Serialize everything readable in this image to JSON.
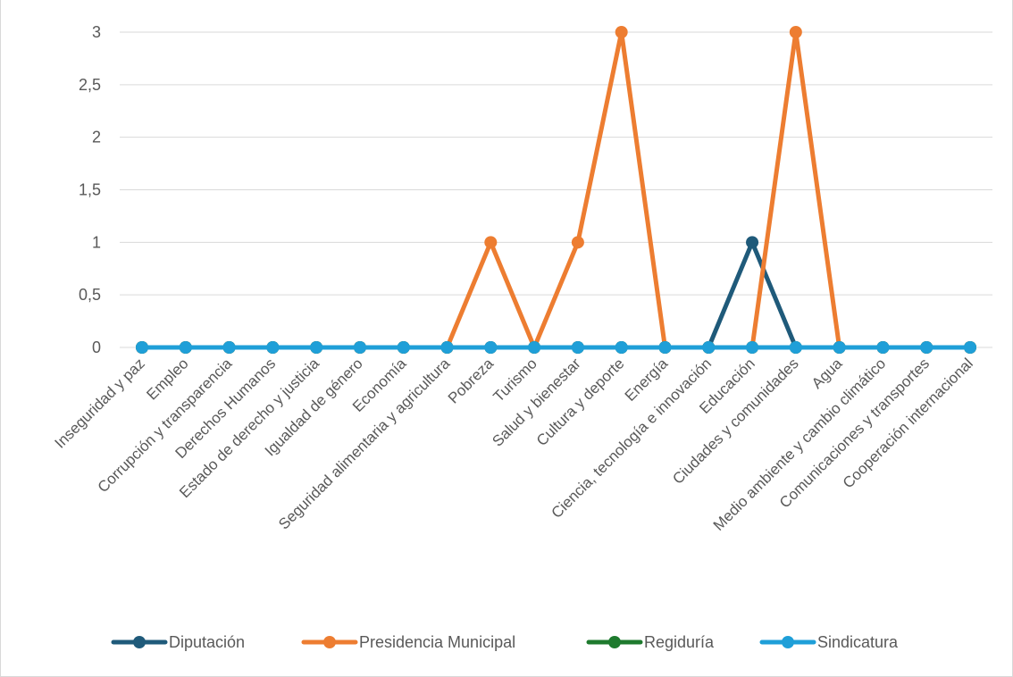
{
  "chart_data": {
    "type": "line",
    "title": "",
    "xlabel": "",
    "ylabel": "",
    "ylim": [
      0,
      3
    ],
    "yticks": [
      "0",
      "0,5",
      "1",
      "1,5",
      "2",
      "2,5",
      "3"
    ],
    "ytick_values": [
      0,
      0.5,
      1,
      1.5,
      2,
      2.5,
      3
    ],
    "grid": true,
    "legend_position": "bottom",
    "categories": [
      "Inseguridad y paz",
      "Empleo",
      "Corrupción y transparencia",
      "Derechos Humanos",
      "Estado de derecho y justicia",
      "Igualdad de género",
      "Economía",
      "Seguridad alimentaria y agricultura",
      "Pobreza",
      "Turismo",
      "Salud y bienestar",
      "Cultura y deporte",
      "Energía",
      "Ciencia, tecnología e innovación",
      "Educación",
      "Ciudades y comunidades",
      "Agua",
      "Medio ambiente y cambio climático",
      "Comunicaciones y transportes",
      "Cooperación internacional"
    ],
    "series": [
      {
        "name": "Diputación",
        "color": "#1f5a7a",
        "values": [
          0,
          0,
          0,
          0,
          0,
          0,
          0,
          0,
          0,
          0,
          0,
          0,
          0,
          0,
          1,
          0,
          0,
          0,
          0,
          0
        ]
      },
      {
        "name": "Presidencia Municipal",
        "color": "#ed7d31",
        "values": [
          0,
          0,
          0,
          0,
          0,
          0,
          0,
          0,
          1,
          0,
          1,
          3,
          0,
          0,
          0,
          3,
          0,
          0,
          0,
          0
        ]
      },
      {
        "name": "Regiduría",
        "color": "#1e7a2e",
        "values": [
          0,
          0,
          0,
          0,
          0,
          0,
          0,
          0,
          0,
          0,
          0,
          0,
          0,
          0,
          0,
          0,
          0,
          0,
          0,
          0
        ]
      },
      {
        "name": "Sindicatura",
        "color": "#1f9fd8",
        "values": [
          0,
          0,
          0,
          0,
          0,
          0,
          0,
          0,
          0,
          0,
          0,
          0,
          0,
          0,
          0,
          0,
          0,
          0,
          0,
          0
        ]
      }
    ]
  }
}
